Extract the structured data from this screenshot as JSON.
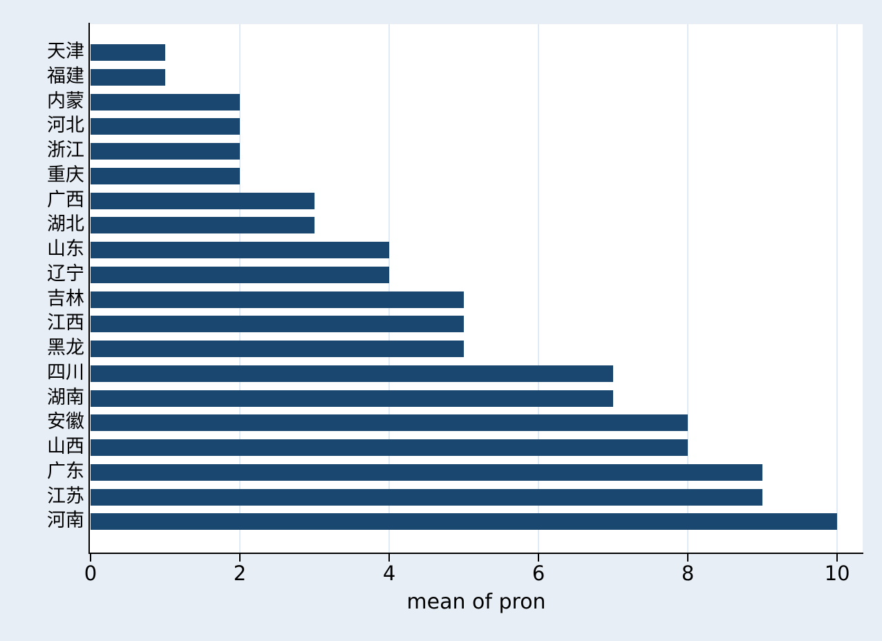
{
  "chart_data": {
    "type": "bar",
    "orientation": "horizontal",
    "title": "",
    "xlabel": "mean of pron",
    "ylabel": "",
    "categories": [
      "天津",
      "福建",
      "内蒙",
      "河北",
      "浙江",
      "重庆",
      "广西",
      "湖北",
      "山东",
      "辽宁",
      "吉林",
      "江西",
      "黑龙",
      "四川",
      "湖南",
      "安徽",
      "山西",
      "广东",
      "江苏",
      "河南"
    ],
    "values": [
      1,
      1,
      2,
      2,
      2,
      2,
      3,
      3,
      4,
      4,
      5,
      5,
      5,
      7,
      7,
      8,
      8,
      9,
      9,
      10
    ],
    "xticks": [
      0,
      2,
      4,
      6,
      8,
      10
    ],
    "xlim": [
      0,
      10.35
    ],
    "grid": true,
    "legend": "none",
    "bar_color": "#1a476f",
    "figure_background": "#e7eef6",
    "plot_background": "#ffffff",
    "gridline_color": "#dfeaf5"
  }
}
